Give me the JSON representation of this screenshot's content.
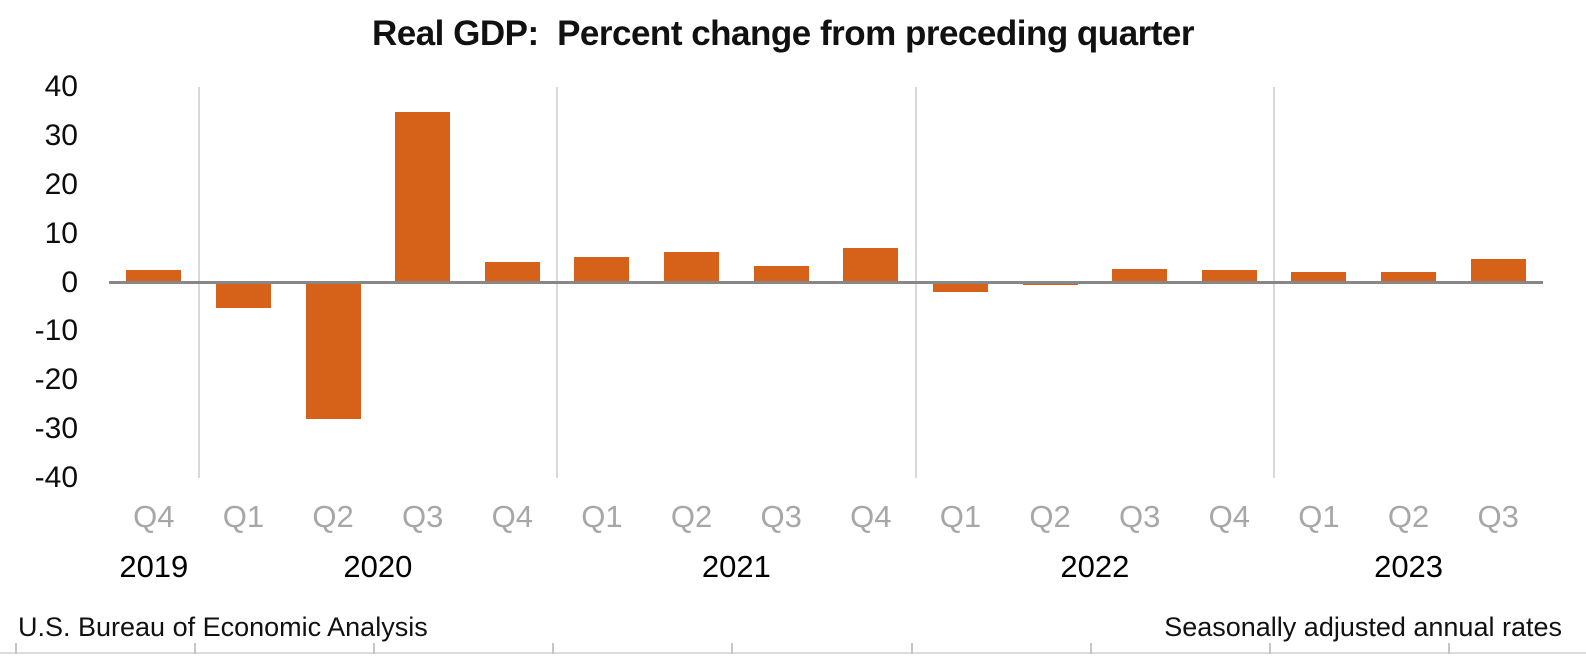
{
  "title": "Real GDP:  Percent change from preceding quarter",
  "footer": {
    "left": "U.S. Bureau of Economic Analysis",
    "right": "Seasonally adjusted annual rates"
  },
  "colors": {
    "bar": "#d6621a",
    "zero_line": "#878787",
    "year_separator": "#d9d9d9",
    "quarter_label": "#a7a7a7",
    "year_label": "#000000",
    "axis_label": "#0d0d0d",
    "bottom_rule": "#dcdcdc",
    "bottom_tick": "#c6c6c6"
  },
  "chart_data": {
    "type": "bar",
    "title": "Real GDP:  Percent change from preceding quarter",
    "source_note": "U.S. Bureau of Economic Analysis",
    "rate_note": "Seasonally adjusted annual rates",
    "xlabel": "",
    "ylabel": "",
    "ylim": [
      -40,
      40
    ],
    "yticks": [
      40,
      30,
      20,
      10,
      0,
      -10,
      -20,
      -30,
      -40
    ],
    "grid": "vertical separators between years only",
    "legend_position": "none",
    "bar_color": "#d6621a",
    "categories": [
      "2019 Q4",
      "2020 Q1",
      "2020 Q2",
      "2020 Q3",
      "2020 Q4",
      "2021 Q1",
      "2021 Q2",
      "2021 Q3",
      "2021 Q4",
      "2022 Q1",
      "2022 Q2",
      "2022 Q3",
      "2022 Q4",
      "2023 Q1",
      "2023 Q2",
      "2023 Q3"
    ],
    "quarter_labels": [
      "Q4",
      "Q1",
      "Q2",
      "Q3",
      "Q4",
      "Q1",
      "Q2",
      "Q3",
      "Q4",
      "Q1",
      "Q2",
      "Q3",
      "Q4",
      "Q1",
      "Q2",
      "Q3"
    ],
    "year_groups": [
      {
        "label": "2019",
        "count": 1
      },
      {
        "label": "2020",
        "count": 4
      },
      {
        "label": "2021",
        "count": 4
      },
      {
        "label": "2022",
        "count": 4
      },
      {
        "label": "2023",
        "count": 3
      }
    ],
    "values": [
      2.6,
      -5.3,
      -28.0,
      34.8,
      4.2,
      5.2,
      6.2,
      3.3,
      7.0,
      -2.0,
      -0.6,
      2.7,
      2.6,
      2.2,
      2.1,
      4.9
    ]
  }
}
